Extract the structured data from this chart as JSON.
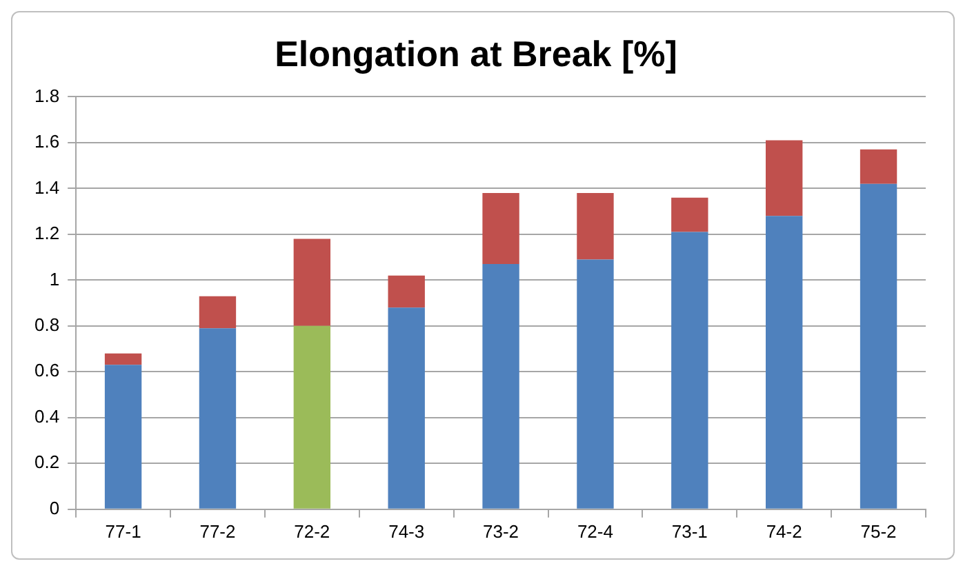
{
  "chart_data": {
    "type": "bar",
    "title": "Elongation at Break [%]",
    "stacked": true,
    "categories": [
      "77-1",
      "77-2",
      "72-2",
      "74-3",
      "73-2",
      "72-4",
      "73-1",
      "74-2",
      "75-2"
    ],
    "series": [
      {
        "colors": [
          "#4f81bd",
          "#4f81bd",
          "#9bbb59",
          "#4f81bd",
          "#4f81bd",
          "#4f81bd",
          "#4f81bd",
          "#4f81bd",
          "#4f81bd"
        ],
        "values": [
          0.63,
          0.79,
          0.8,
          0.88,
          1.07,
          1.09,
          1.21,
          1.28,
          1.42
        ]
      },
      {
        "color": "#c0504d",
        "values": [
          0.05,
          0.14,
          0.38,
          0.14,
          0.31,
          0.29,
          0.15,
          0.33,
          0.15
        ]
      }
    ],
    "ylim": [
      0,
      1.8
    ],
    "yticks": [
      0,
      0.2,
      0.4,
      0.6,
      0.8,
      1,
      1.2,
      1.4,
      1.6,
      1.8
    ],
    "grid": "y",
    "legend": false
  }
}
